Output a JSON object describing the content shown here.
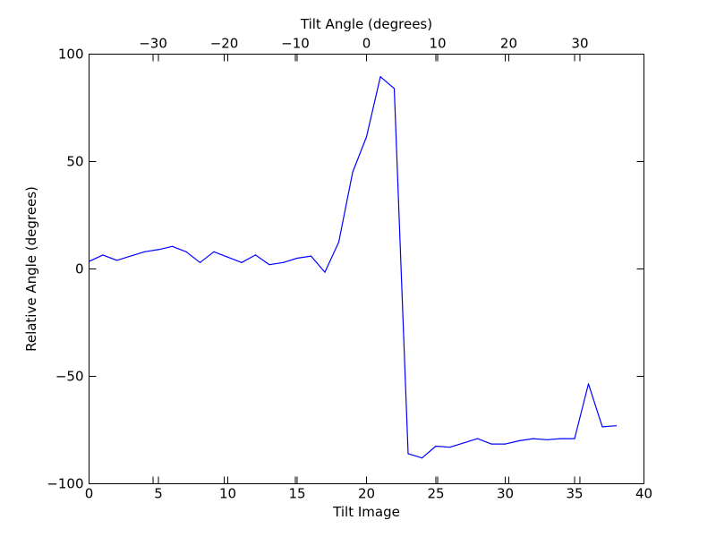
{
  "chart_data": {
    "type": "line",
    "xlabel": "Tilt Image",
    "ylabel": "Relative Angle (degrees)",
    "x2label": "Tilt Angle (degrees)",
    "xlim": [
      0,
      40
    ],
    "ylim": [
      -100,
      100
    ],
    "x2lim": [
      -39,
      39
    ],
    "xticks": [
      0,
      5,
      10,
      15,
      20,
      25,
      30,
      35,
      40
    ],
    "yticks": [
      -100,
      -50,
      0,
      50,
      100
    ],
    "x2ticks": [
      -30,
      -20,
      -10,
      0,
      10,
      20,
      30
    ],
    "xtick_labels": [
      "0",
      "5",
      "10",
      "15",
      "20",
      "25",
      "30",
      "35",
      "40"
    ],
    "ytick_labels": [
      "−100",
      "−50",
      "0",
      "50",
      "100"
    ],
    "x2tick_labels": [
      "−30",
      "−20",
      "−10",
      "0",
      "10",
      "20",
      "30"
    ],
    "grid": false,
    "series": [
      {
        "color": "#0000ff",
        "x": [
          0,
          1,
          2,
          3,
          4,
          5,
          6,
          7,
          8,
          9,
          10,
          11,
          12,
          13,
          14,
          15,
          16,
          17,
          18,
          19,
          20,
          21,
          22,
          23,
          24,
          25,
          26,
          27,
          28,
          29,
          30,
          31,
          32,
          33,
          34,
          35,
          36,
          37,
          38
        ],
        "y": [
          3.5,
          6.5,
          4,
          6,
          8,
          9,
          10.5,
          8,
          3,
          8,
          5.5,
          3,
          6.5,
          2,
          3,
          5,
          6,
          -1.5,
          12.5,
          45,
          61.5,
          89.5,
          84,
          -86,
          -88,
          -82.5,
          -83,
          -81,
          -79,
          -81.5,
          -81.5,
          -80,
          -79,
          -79.5,
          -79,
          -79,
          -53.5,
          -73.5,
          -73
        ]
      }
    ]
  }
}
